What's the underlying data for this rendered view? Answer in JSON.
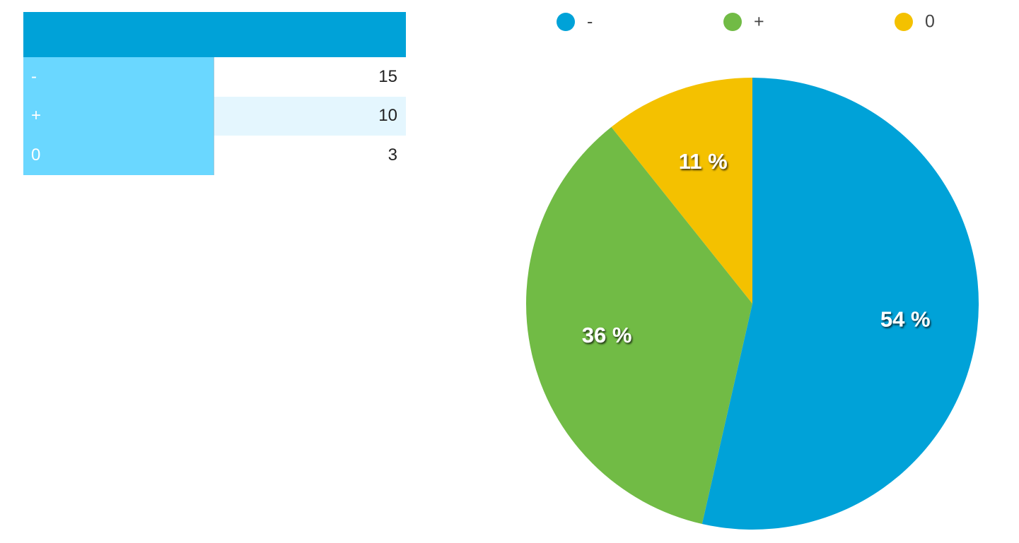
{
  "table": {
    "header_color": "#00a2d8",
    "rows": [
      {
        "label": "-",
        "value": "15"
      },
      {
        "label": "+",
        "value": "10"
      },
      {
        "label": "0",
        "value": "3"
      }
    ]
  },
  "chart_data": {
    "type": "pie",
    "categories": [
      "-",
      "+",
      "0"
    ],
    "values": [
      15,
      10,
      3
    ],
    "percent_labels": [
      "54 %",
      "36 %",
      "11 %"
    ],
    "colors": [
      "#00a2d8",
      "#71bb45",
      "#f4c100"
    ],
    "start_angle": "12 o'clock",
    "direction": "clockwise",
    "legend_position": "top"
  }
}
